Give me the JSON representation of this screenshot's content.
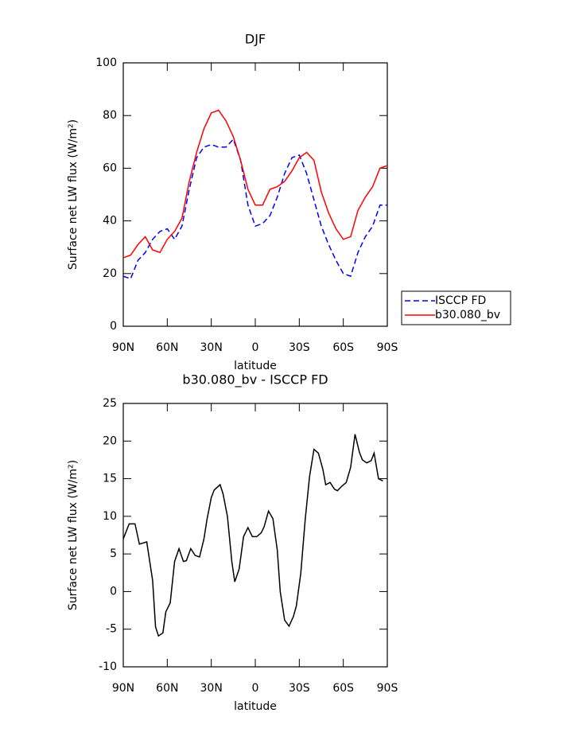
{
  "chart_data": [
    {
      "type": "line",
      "title": "DJF",
      "xlabel": "latitude",
      "ylabel": "Surface net LW flux (W/m²)",
      "x": [
        90,
        85,
        80,
        75,
        70,
        65,
        60,
        55,
        50,
        45,
        40,
        35,
        30,
        25,
        20,
        15,
        10,
        5,
        0,
        -5,
        -10,
        -15,
        -20,
        -25,
        -30,
        -35,
        -40,
        -45,
        -50,
        -55,
        -60,
        -65,
        -70,
        -75,
        -80,
        -85,
        -90
      ],
      "series": [
        {
          "name": "ISCCP FD",
          "color": "#0000ff",
          "style": "dashed",
          "values": [
            19,
            18,
            25,
            28,
            33,
            36,
            37,
            33,
            38,
            52,
            64,
            68,
            69,
            68,
            68,
            71,
            63,
            46,
            38,
            39,
            42,
            49,
            58,
            64,
            65,
            58,
            48,
            38,
            31,
            25,
            20,
            19,
            28,
            34,
            38,
            46,
            46
          ]
        },
        {
          "name": "b30.080_bv",
          "color": "#ff0000",
          "style": "solid",
          "values": [
            26,
            27,
            31,
            34,
            29,
            28,
            33,
            36,
            41,
            55,
            66,
            75,
            81,
            82,
            78,
            72,
            63,
            52,
            46,
            46,
            52,
            53,
            55,
            59,
            64,
            66,
            63,
            51,
            43,
            37,
            33,
            34,
            44,
            49,
            53,
            60,
            61
          ]
        }
      ],
      "xlim": [
        90,
        -90
      ],
      "xticks": [
        {
          "value": 90,
          "label": "90N"
        },
        {
          "value": 60,
          "label": "60N"
        },
        {
          "value": 30,
          "label": "30N"
        },
        0,
        {
          "value": -30,
          "label": "30S"
        },
        {
          "value": -60,
          "label": "60S"
        },
        {
          "value": -90,
          "label": "90S"
        }
      ],
      "ylim": [
        0,
        100
      ],
      "yticks": [
        0,
        20,
        40,
        60,
        80,
        100
      ],
      "legend": "right"
    },
    {
      "type": "line",
      "title": "b30.080_bv - ISCCP FD",
      "xlabel": "latitude",
      "ylabel": "Surface net LW flux (W/m²)",
      "x": [
        90,
        86,
        82,
        79,
        74,
        70,
        68,
        66,
        63,
        61,
        58,
        55,
        52,
        49,
        47,
        44,
        41,
        38,
        35,
        33,
        30,
        28,
        24,
        22,
        19,
        16,
        14,
        11,
        8,
        5,
        2,
        -1,
        -4,
        -6,
        -9,
        -12,
        -15,
        -17,
        -20,
        -23,
        -26,
        -28,
        -31,
        -34,
        -37,
        -40,
        -43,
        -46,
        -48,
        -51,
        -54,
        -56,
        -59,
        -62,
        -65,
        -68,
        -71,
        -73,
        -76,
        -79,
        -81,
        -84,
        -87
      ],
      "series": [
        {
          "color": "#000000",
          "style": "solid",
          "values": [
            7,
            9,
            9,
            6.3,
            6.6,
            1.5,
            -4.7,
            -5.9,
            -5.5,
            -2.7,
            -1.5,
            4,
            5.7,
            4,
            4.1,
            5.7,
            4.8,
            4.6,
            7,
            9.5,
            12.5,
            13.5,
            14.2,
            13,
            10,
            4,
            1.3,
            3,
            7.3,
            8.5,
            7.3,
            7.3,
            7.8,
            8.6,
            10.7,
            9.7,
            5.5,
            0,
            -3.8,
            -4.6,
            -3.3,
            -1.9,
            2.4,
            9.5,
            15.3,
            18.9,
            18.4,
            16.3,
            14.2,
            14.5,
            13.6,
            13.4,
            14,
            14.5,
            16.5,
            20.9,
            18.5,
            17.5,
            17.1,
            17.4,
            18.4,
            15,
            14.7
          ]
        }
      ],
      "xlim": [
        90,
        -90
      ],
      "xticks": [
        {
          "value": 90,
          "label": "90N"
        },
        {
          "value": 60,
          "label": "60N"
        },
        {
          "value": 30,
          "label": "30N"
        },
        0,
        {
          "value": -30,
          "label": "30S"
        },
        {
          "value": -60,
          "label": "60S"
        },
        {
          "value": -90,
          "label": "90S"
        }
      ],
      "ylim": [
        -10,
        25
      ],
      "yticks": [
        -10,
        -5,
        0,
        5,
        10,
        15,
        20,
        25
      ]
    }
  ]
}
